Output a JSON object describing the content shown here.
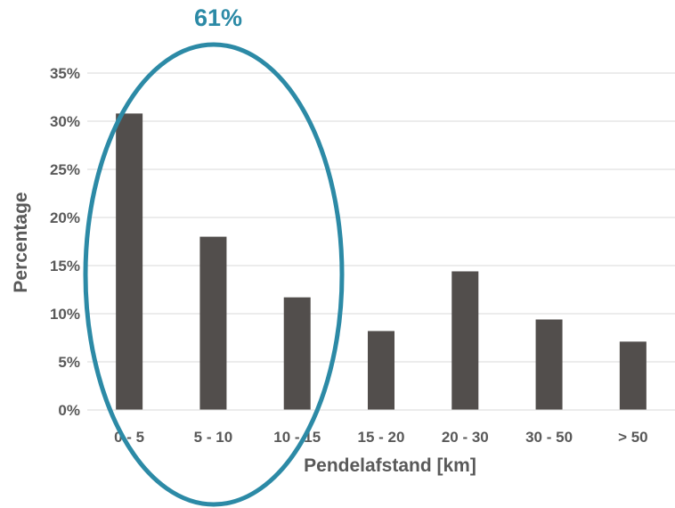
{
  "chart_data": {
    "type": "bar",
    "categories": [
      "0 - 5",
      "5 - 10",
      "10 - 15",
      "15 - 20",
      "20 - 30",
      "30 - 50",
      "> 50"
    ],
    "values": [
      30.8,
      18.0,
      11.7,
      8.2,
      14.4,
      9.4,
      7.1
    ],
    "xlabel": "Pendelafstand [km]",
    "ylabel": "Percentage",
    "ylim": [
      0,
      35
    ],
    "yticks": [
      "0%",
      "5%",
      "10%",
      "15%",
      "20%",
      "25%",
      "30%",
      "35%"
    ],
    "grid": true,
    "legend": "none",
    "bar_color": "#524e4c",
    "annotation": {
      "text": "61%",
      "color": "#2c8aa6",
      "highlights": [
        "0 - 5",
        "5 - 10",
        "10 - 15"
      ]
    }
  }
}
